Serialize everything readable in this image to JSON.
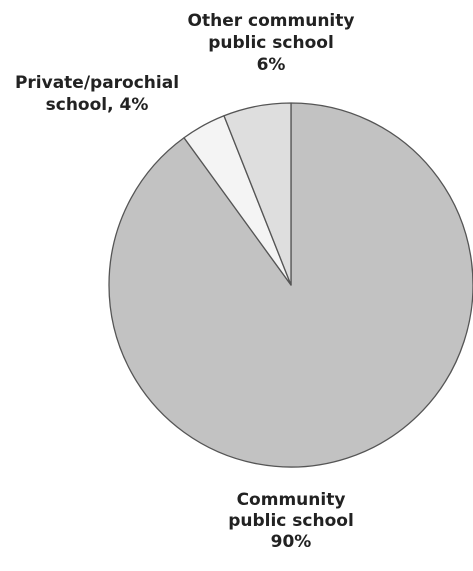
{
  "chart_data": {
    "type": "pie",
    "title": "",
    "start_angle_deg": 0,
    "direction": "clockwise",
    "slices": [
      {
        "label_lines": [
          "Community",
          "public school",
          "90%"
        ],
        "value": 90,
        "color": "#c2c2c2"
      },
      {
        "label_lines": [
          "Private/parochial",
          "school, 4%"
        ],
        "value": 4,
        "color": "#f4f4f4"
      },
      {
        "label_lines": [
          "Other community",
          "public school",
          "6%"
        ],
        "value": 6,
        "color": "#dedede"
      }
    ],
    "edge_color": "#555555"
  }
}
